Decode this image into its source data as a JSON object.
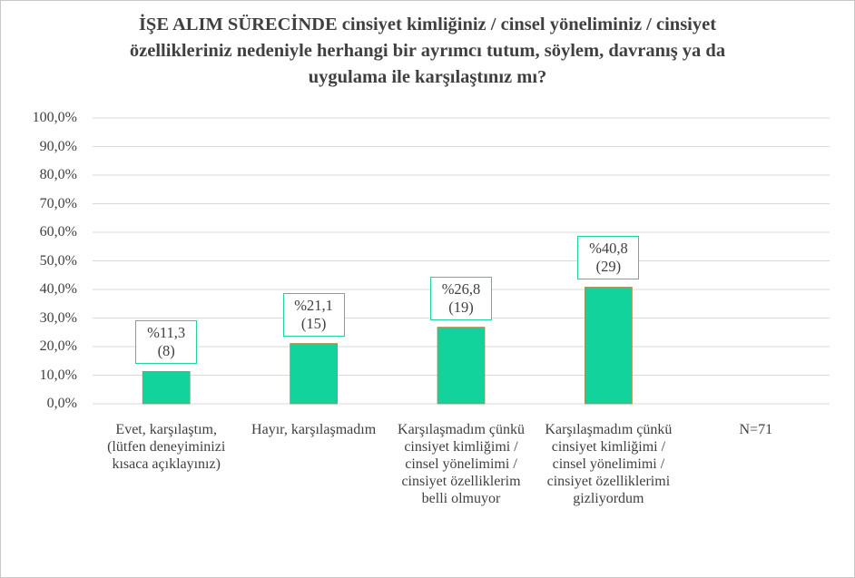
{
  "chart_data": {
    "type": "bar",
    "title": "İŞE ALIM SÜRECİNDE cinsiyet kimliğiniz / cinsel yöneliminiz / cinsiyet özellikleriniz nedeniyle herhangi bir ayrımcı tutum, söylem, davranış ya da uygulama ile karşılaştınız mı?",
    "categories": [
      "Evet, karşılaştım, (lütfen deneyiminizi kısaca açıklayınız)",
      "Hayır, karşılaşmadım",
      "Karşılaşmadım çünkü cinsiyet kimliğimi / cinsel yönelimimi / cinsiyet özelliklerim belli olmuyor",
      "Karşılaşmadım çünkü cinsiyet kimliğimi / cinsel yönelimimi / cinsiyet özelliklerimi gizliyordum"
    ],
    "values": [
      11.3,
      21.1,
      26.8,
      40.8
    ],
    "value_labels": [
      "%11,3\n(8)",
      "%21,1\n(15)",
      "%26,8\n(19)",
      "%40,8\n(29)"
    ],
    "annotation": "N=71",
    "color": "#11d39b",
    "ylim": [
      0,
      100
    ],
    "yticks": [
      {
        "value": 0,
        "label": "0,0%"
      },
      {
        "value": 10,
        "label": "10,0%"
      },
      {
        "value": 20,
        "label": "20,0%"
      },
      {
        "value": 30,
        "label": "30,0%"
      },
      {
        "value": 40,
        "label": "40,0%"
      },
      {
        "value": 50,
        "label": "50,0%"
      },
      {
        "value": 60,
        "label": "60,0%"
      },
      {
        "value": 70,
        "label": "70,0%"
      },
      {
        "value": 80,
        "label": "80,0%"
      },
      {
        "value": 90,
        "label": "90,0%"
      },
      {
        "value": 100,
        "label": "100,0%"
      }
    ],
    "grid": true
  }
}
